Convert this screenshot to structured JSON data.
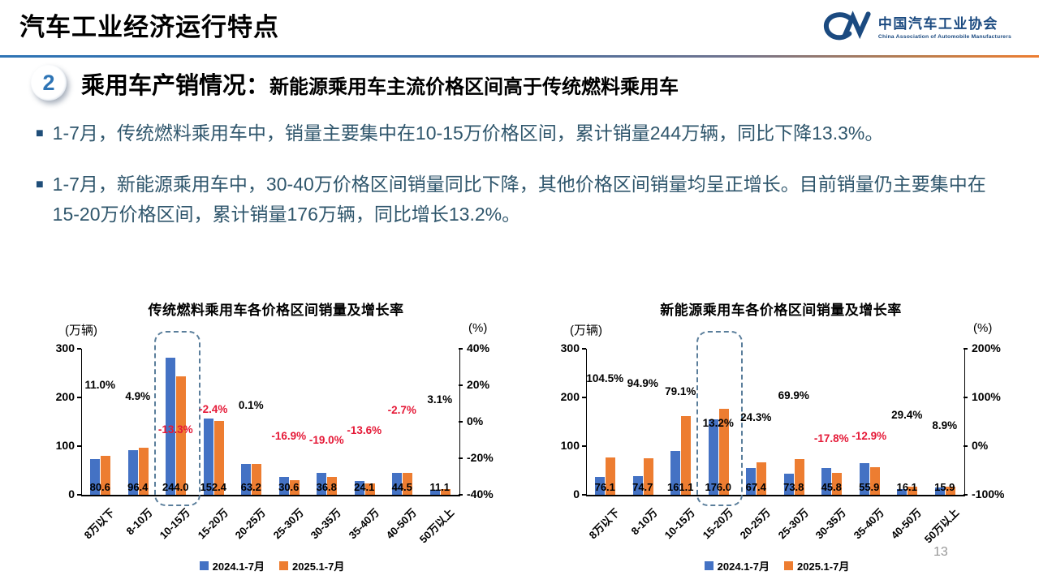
{
  "header": {
    "title": "汽车工业经济运行特点",
    "logo": {
      "org_cn": "中国汽车工业协会",
      "org_en": "China Association of Automobile Manufacturers"
    }
  },
  "section": {
    "number": "2",
    "title": "乘用车产销情况：",
    "subtitle": "新能源乘用车主流价格区间高于传统燃料乘用车"
  },
  "bullet_marker": "■",
  "bullets": [
    "1-7月，传统燃料乘用车中，销量主要集中在10-15万价格区间，累计销量244万辆，同比下降13.3%。",
    "1-7月，新能源乘用车中，30-40万价格区间销量同比下降，其他价格区间销量均呈正增长。目前销量仍主要集中在15-20万价格区间，累计销量176万辆，同比增长13.2%。"
  ],
  "page_number": "13",
  "colors": {
    "bar_blue": "#4472C4",
    "bar_orange": "#ED7D31",
    "negative_red": "#E51937",
    "positive_black": "#000000",
    "accent_blue": "#2E74B5",
    "text_blue": "#2F566C",
    "logo_blue": "#1B4A80",
    "highlight_dash": "#5A7E9B"
  },
  "chart_data": [
    {
      "type": "bar",
      "title": "传统燃料乘用车各价格区间销量及增长率",
      "unit_left": "(万辆)",
      "unit_right": "(%)",
      "categories": [
        "8万以下",
        "8-10万",
        "10-15万",
        "15-20万",
        "20-25万",
        "25-30万",
        "30-35万",
        "35-40万",
        "40-50万",
        "50万以上"
      ],
      "series": [
        {
          "name": "2024.1-7月",
          "color": "#4472C4",
          "estimated_from_bars": true,
          "values": [
            72.6,
            91.9,
            281.4,
            156.1,
            63.1,
            36.8,
            45.4,
            27.9,
            45.7,
            10.8
          ]
        },
        {
          "name": "2025.1-7月",
          "color": "#ED7D31",
          "values": [
            80.6,
            96.4,
            244.0,
            152.4,
            63.2,
            30.6,
            36.8,
            24.1,
            44.5,
            11.1
          ]
        }
      ],
      "value_labels": [
        "80.6",
        "96.4",
        "244.0",
        "152.4",
        "63.2",
        "30.6",
        "36.8",
        "24.1",
        "44.5",
        "11.1"
      ],
      "growth_rates": [
        11.0,
        4.9,
        -13.3,
        -2.4,
        0.1,
        -16.9,
        -19.0,
        -13.6,
        -2.7,
        3.1
      ],
      "growth_labels": [
        "11.0%",
        "4.9%",
        "-13.3%",
        "-2.4%",
        "0.1%",
        "-16.9%",
        "-19.0%",
        "-13.6%",
        "-2.7%",
        "3.1%"
      ],
      "left_axis": {
        "range": [
          0,
          300
        ],
        "ticks": [
          300,
          200,
          100,
          0
        ]
      },
      "right_axis": {
        "range": [
          -40,
          40
        ],
        "tick_values": [
          40,
          20,
          0,
          -20,
          -40
        ],
        "tick_labels": [
          "40%",
          "20%",
          "0%",
          "-20%",
          "-40%"
        ]
      },
      "highlight_index": 2,
      "legend": [
        "2024.1-7月",
        "2025.1-7月"
      ],
      "grid": false,
      "legend_position": "bottom"
    },
    {
      "type": "bar",
      "title": "新能源乘用车各价格区间销量及增长率",
      "unit_left": "(万辆)",
      "unit_right": "(%)",
      "categories": [
        "8万以下",
        "8-10万",
        "10-15万",
        "15-20万",
        "20-25万",
        "25-30万",
        "30-35万",
        "35-40万",
        "40-50万",
        "50万以上"
      ],
      "series": [
        {
          "name": "2024.1-7月",
          "color": "#4472C4",
          "estimated_from_bars": true,
          "values": [
            37.2,
            38.3,
            90.0,
            155.5,
            54.2,
            43.4,
            55.7,
            64.2,
            12.4,
            14.6
          ]
        },
        {
          "name": "2025.1-7月",
          "color": "#ED7D31",
          "values": [
            76.1,
            74.7,
            161.1,
            176.0,
            67.4,
            73.8,
            45.8,
            55.9,
            16.1,
            15.9
          ]
        }
      ],
      "value_labels": [
        "76.1",
        "74.7",
        "161.1",
        "176.0",
        "67.4",
        "73.8",
        "45.8",
        "55.9",
        "16.1",
        "15.9"
      ],
      "growth_rates": [
        104.5,
        94.9,
        79.1,
        13.2,
        24.3,
        69.9,
        -17.8,
        -12.9,
        29.4,
        8.9
      ],
      "growth_labels": [
        "104.5%",
        "94.9%",
        "79.1%",
        "13.2%",
        "24.3%",
        "69.9%",
        "-17.8%",
        "-12.9%",
        "29.4%",
        "8.9%"
      ],
      "left_axis": {
        "range": [
          0,
          300
        ],
        "ticks": [
          300,
          200,
          100,
          0
        ]
      },
      "right_axis": {
        "range": [
          -100,
          200
        ],
        "tick_values": [
          200,
          100,
          0,
          -100
        ],
        "tick_labels": [
          "200%",
          "100%",
          "0%",
          "-100%"
        ]
      },
      "highlight_index": 3,
      "legend": [
        "2024.1-7月",
        "2025.1-7月"
      ],
      "grid": false,
      "legend_position": "bottom"
    }
  ]
}
